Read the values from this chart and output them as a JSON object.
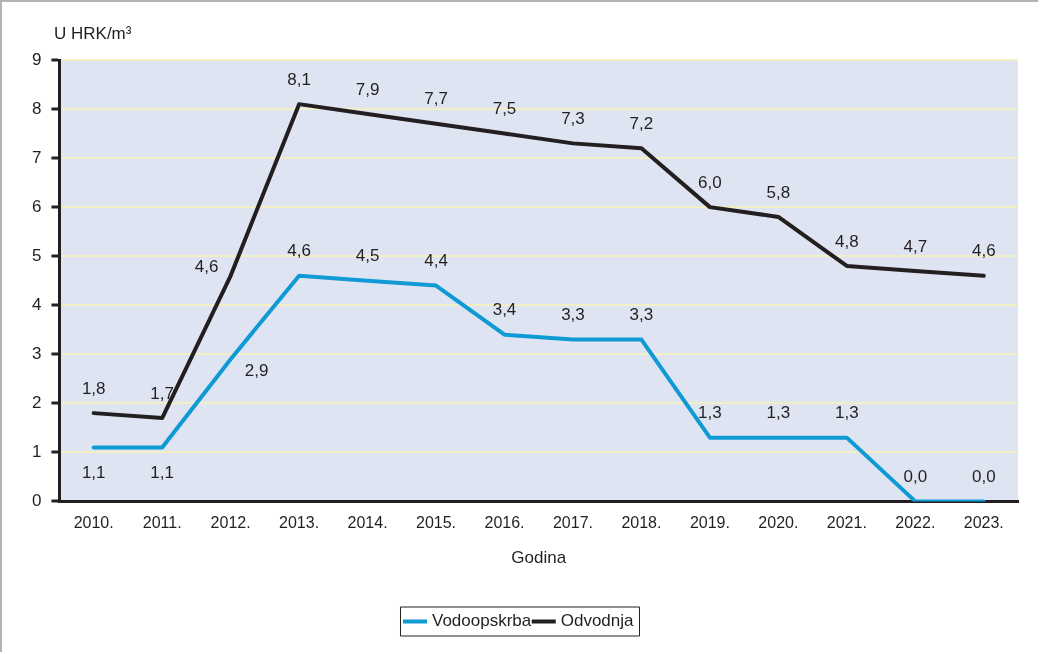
{
  "chart_data": {
    "type": "line",
    "ylabel": "U HRK/m³",
    "xlabel": "Godina",
    "categories": [
      "2010.",
      "2011.",
      "2012.",
      "2013.",
      "2014.",
      "2015.",
      "2016.",
      "2017.",
      "2018.",
      "2019.",
      "2020.",
      "2021.",
      "2022.",
      "2023."
    ],
    "series": [
      {
        "name": "Vodoopskrba",
        "color": "#0f9ad6",
        "values": [
          1.1,
          1.1,
          2.9,
          4.6,
          4.5,
          4.4,
          3.4,
          3.3,
          3.3,
          1.3,
          1.3,
          1.3,
          0.0,
          0.0
        ],
        "value_labels": [
          "1,1",
          "1,1",
          "2,9",
          "4,6",
          "4,5",
          "4,4",
          "3,4",
          "3,3",
          "3,3",
          "1,3",
          "1,3",
          "1,3",
          "0,0",
          "0,0"
        ]
      },
      {
        "name": "Odvodnja",
        "color": "#231f20",
        "values": [
          1.8,
          1.7,
          4.6,
          8.1,
          7.9,
          7.7,
          7.5,
          7.3,
          7.2,
          6.0,
          5.8,
          4.8,
          4.7,
          4.6
        ],
        "value_labels": [
          "1,8",
          "1,7",
          "4,6",
          "8,1",
          "7,9",
          "7,7",
          "7,5",
          "7,3",
          "7,2",
          "6,0",
          "5,8",
          "4,8",
          "4,7",
          "4,6"
        ]
      }
    ],
    "ylim": [
      0,
      9
    ],
    "yticks": [
      0,
      1,
      2,
      3,
      4,
      5,
      6,
      7,
      8,
      9
    ],
    "grid": "y",
    "legend": "bottom",
    "marker": "none",
    "line_style": "solid"
  }
}
